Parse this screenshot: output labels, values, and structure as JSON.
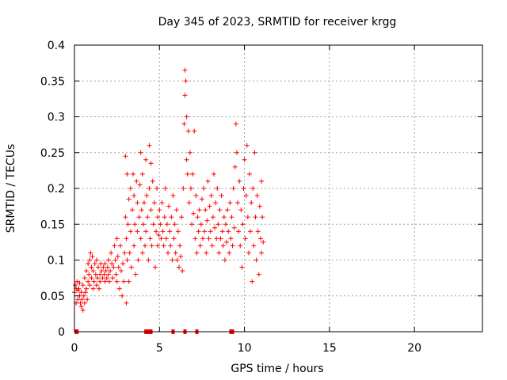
{
  "chart_data": {
    "type": "scatter",
    "title": "Day 345 of 2023, SRMTID for receiver krgg",
    "xlabel": "GPS time / hours",
    "ylabel": "SRMTID / TECUs",
    "xlim": [
      0,
      24
    ],
    "ylim": [
      0,
      0.4
    ],
    "x_ticks": [
      0,
      5,
      10,
      15,
      20
    ],
    "x_tick_labels": [
      "0",
      "5",
      "10",
      "15",
      "20"
    ],
    "y_ticks": [
      0,
      0.05,
      0.1,
      0.15,
      0.2,
      0.25,
      0.3,
      0.35,
      0.4
    ],
    "y_tick_labels": [
      "0",
      "0.05",
      "0.1",
      "0.15",
      "0.2",
      "0.25",
      "0.3",
      "0.35",
      "0.4"
    ],
    "grid": true,
    "marker": "plus",
    "color": "#ff0000",
    "zero_value_times": [
      0.1,
      0.15,
      4.2,
      4.35,
      4.5,
      5.8,
      6.5,
      7.2,
      9.2,
      9.3
    ],
    "series": [
      {
        "name": "SRMTID",
        "points": [
          [
            0.0,
            0.055
          ],
          [
            0.05,
            0.065
          ],
          [
            0.1,
            0.04
          ],
          [
            0.1,
            0.06
          ],
          [
            0.15,
            0.07
          ],
          [
            0.2,
            0.045
          ],
          [
            0.2,
            0.058
          ],
          [
            0.25,
            0.06
          ],
          [
            0.3,
            0.05
          ],
          [
            0.3,
            0.068
          ],
          [
            0.35,
            0.04
          ],
          [
            0.4,
            0.035
          ],
          [
            0.4,
            0.055
          ],
          [
            0.45,
            0.045
          ],
          [
            0.5,
            0.03
          ],
          [
            0.5,
            0.065
          ],
          [
            0.55,
            0.05
          ],
          [
            0.6,
            0.04
          ],
          [
            0.6,
            0.075
          ],
          [
            0.65,
            0.055
          ],
          [
            0.7,
            0.085
          ],
          [
            0.7,
            0.06
          ],
          [
            0.75,
            0.045
          ],
          [
            0.8,
            0.07
          ],
          [
            0.8,
            0.095
          ],
          [
            0.85,
            0.08
          ],
          [
            0.9,
            0.1
          ],
          [
            0.9,
            0.065
          ],
          [
            0.95,
            0.11
          ],
          [
            1.0,
            0.09
          ],
          [
            1.0,
            0.075
          ],
          [
            1.05,
            0.105
          ],
          [
            1.1,
            0.085
          ],
          [
            1.1,
            0.06
          ],
          [
            1.15,
            0.07
          ],
          [
            1.2,
            0.095
          ],
          [
            1.25,
            0.08
          ],
          [
            1.3,
            0.065
          ],
          [
            1.3,
            0.1
          ],
          [
            1.35,
            0.075
          ],
          [
            1.4,
            0.09
          ],
          [
            1.45,
            0.06
          ],
          [
            1.5,
            0.08
          ],
          [
            1.5,
            0.07
          ],
          [
            1.55,
            0.095
          ],
          [
            1.6,
            0.085
          ],
          [
            1.65,
            0.075
          ],
          [
            1.7,
            0.09
          ],
          [
            1.75,
            0.08
          ],
          [
            1.8,
            0.07
          ],
          [
            1.8,
            0.095
          ],
          [
            1.85,
            0.085
          ],
          [
            1.9,
            0.075
          ],
          [
            1.95,
            0.09
          ],
          [
            2.0,
            0.08
          ],
          [
            2.0,
            0.1
          ],
          [
            2.05,
            0.07
          ],
          [
            2.1,
            0.085
          ],
          [
            2.15,
            0.11
          ],
          [
            2.2,
            0.095
          ],
          [
            2.25,
            0.075
          ],
          [
            2.3,
            0.09
          ],
          [
            2.35,
            0.12
          ],
          [
            2.4,
            0.1
          ],
          [
            2.45,
            0.08
          ],
          [
            2.5,
            0.13
          ],
          [
            2.5,
            0.07
          ],
          [
            2.55,
            0.105
          ],
          [
            2.6,
            0.09
          ],
          [
            2.65,
            0.06
          ],
          [
            2.7,
            0.12
          ],
          [
            2.75,
            0.085
          ],
          [
            2.8,
            0.05
          ],
          [
            2.85,
            0.095
          ],
          [
            2.9,
            0.07
          ],
          [
            2.95,
            0.11
          ],
          [
            3.0,
            0.245
          ],
          [
            3.0,
            0.16
          ],
          [
            3.05,
            0.13
          ],
          [
            3.05,
            0.04
          ],
          [
            3.1,
            0.22
          ],
          [
            3.1,
            0.1
          ],
          [
            3.15,
            0.15
          ],
          [
            3.2,
            0.185
          ],
          [
            3.2,
            0.07
          ],
          [
            3.25,
            0.11
          ],
          [
            3.3,
            0.2
          ],
          [
            3.3,
            0.14
          ],
          [
            3.35,
            0.09
          ],
          [
            3.4,
            0.17
          ],
          [
            3.45,
            0.22
          ],
          [
            3.5,
            0.12
          ],
          [
            3.5,
            0.19
          ],
          [
            3.55,
            0.15
          ],
          [
            3.6,
            0.08
          ],
          [
            3.65,
            0.21
          ],
          [
            3.7,
            0.14
          ],
          [
            3.7,
            0.18
          ],
          [
            3.75,
            0.1
          ],
          [
            3.8,
            0.16
          ],
          [
            3.85,
            0.205
          ],
          [
            3.9,
            0.13
          ],
          [
            3.9,
            0.25
          ],
          [
            3.95,
            0.17
          ],
          [
            4.0,
            0.11
          ],
          [
            4.0,
            0.22
          ],
          [
            4.05,
            0.15
          ],
          [
            4.1,
            0.18
          ],
          [
            4.15,
            0.12
          ],
          [
            4.2,
            0.24
          ],
          [
            4.2,
            0.14
          ],
          [
            4.25,
            0.19
          ],
          [
            4.3,
            0.16
          ],
          [
            4.35,
            0.1
          ],
          [
            4.4,
            0.26
          ],
          [
            4.4,
            0.2
          ],
          [
            4.45,
            0.13
          ],
          [
            4.5,
            0.235
          ],
          [
            4.5,
            0.17
          ],
          [
            4.55,
            0.12
          ],
          [
            4.6,
            0.21
          ],
          [
            4.65,
            0.15
          ],
          [
            4.7,
            0.18
          ],
          [
            4.75,
            0.09
          ],
          [
            4.8,
            0.14
          ],
          [
            4.85,
            0.2
          ],
          [
            4.9,
            0.12
          ],
          [
            4.9,
            0.16
          ],
          [
            4.95,
            0.135
          ],
          [
            5.0,
            0.17
          ],
          [
            5.05,
            0.15
          ],
          [
            5.1,
            0.13
          ],
          [
            5.15,
            0.18
          ],
          [
            5.2,
            0.14
          ],
          [
            5.25,
            0.12
          ],
          [
            5.3,
            0.16
          ],
          [
            5.35,
            0.2
          ],
          [
            5.4,
            0.13
          ],
          [
            5.45,
            0.15
          ],
          [
            5.5,
            0.11
          ],
          [
            5.55,
            0.175
          ],
          [
            5.6,
            0.14
          ],
          [
            5.65,
            0.12
          ],
          [
            5.7,
            0.16
          ],
          [
            5.75,
            0.1
          ],
          [
            5.8,
            0.19
          ],
          [
            5.85,
            0.13
          ],
          [
            5.9,
            0.15
          ],
          [
            5.95,
            0.11
          ],
          [
            6.0,
            0.17
          ],
          [
            6.05,
            0.1
          ],
          [
            6.1,
            0.14
          ],
          [
            6.15,
            0.09
          ],
          [
            6.2,
            0.12
          ],
          [
            6.25,
            0.105
          ],
          [
            6.3,
            0.16
          ],
          [
            6.35,
            0.085
          ],
          [
            6.4,
            0.2
          ],
          [
            6.45,
            0.29
          ],
          [
            6.5,
            0.365
          ],
          [
            6.5,
            0.33
          ],
          [
            6.55,
            0.35
          ],
          [
            6.6,
            0.24
          ],
          [
            6.6,
            0.3
          ],
          [
            6.65,
            0.22
          ],
          [
            6.7,
            0.28
          ],
          [
            6.75,
            0.18
          ],
          [
            6.8,
            0.25
          ],
          [
            6.85,
            0.2
          ],
          [
            6.9,
            0.15
          ],
          [
            6.95,
            0.22
          ],
          [
            7.0,
            0.165
          ],
          [
            7.05,
            0.28
          ],
          [
            7.1,
            0.13
          ],
          [
            7.15,
            0.19
          ],
          [
            7.2,
            0.11
          ],
          [
            7.25,
            0.16
          ],
          [
            7.3,
            0.14
          ],
          [
            7.35,
            0.17
          ],
          [
            7.4,
            0.12
          ],
          [
            7.45,
            0.15
          ],
          [
            7.5,
            0.185
          ],
          [
            7.55,
            0.13
          ],
          [
            7.6,
            0.2
          ],
          [
            7.65,
            0.14
          ],
          [
            7.7,
            0.17
          ],
          [
            7.75,
            0.11
          ],
          [
            7.8,
            0.155
          ],
          [
            7.85,
            0.21
          ],
          [
            7.9,
            0.13
          ],
          [
            7.95,
            0.175
          ],
          [
            8.0,
            0.14
          ],
          [
            8.05,
            0.19
          ],
          [
            8.1,
            0.12
          ],
          [
            8.15,
            0.16
          ],
          [
            8.2,
            0.22
          ],
          [
            8.25,
            0.145
          ],
          [
            8.3,
            0.18
          ],
          [
            8.35,
            0.13
          ],
          [
            8.4,
            0.2
          ],
          [
            8.45,
            0.15
          ],
          [
            8.5,
            0.11
          ],
          [
            8.55,
            0.17
          ],
          [
            8.6,
            0.13
          ],
          [
            8.65,
            0.19
          ],
          [
            8.7,
            0.14
          ],
          [
            8.75,
            0.12
          ],
          [
            8.8,
            0.16
          ],
          [
            8.85,
            0.1
          ],
          [
            8.9,
            0.15
          ],
          [
            8.95,
            0.125
          ],
          [
            9.0,
            0.17
          ],
          [
            9.05,
            0.14
          ],
          [
            9.1,
            0.11
          ],
          [
            9.15,
            0.18
          ],
          [
            9.2,
            0.13
          ],
          [
            9.25,
            0.16
          ],
          [
            9.3,
            0.12
          ],
          [
            9.35,
            0.2
          ],
          [
            9.4,
            0.145
          ],
          [
            9.45,
            0.23
          ],
          [
            9.5,
            0.29
          ],
          [
            9.55,
            0.25
          ],
          [
            9.6,
            0.18
          ],
          [
            9.65,
            0.14
          ],
          [
            9.7,
            0.21
          ],
          [
            9.75,
            0.12
          ],
          [
            9.8,
            0.17
          ],
          [
            9.85,
            0.09
          ],
          [
            9.9,
            0.15
          ],
          [
            9.95,
            0.2
          ],
          [
            10.0,
            0.24
          ],
          [
            10.05,
            0.13
          ],
          [
            10.1,
            0.19
          ],
          [
            10.15,
            0.26
          ],
          [
            10.2,
            0.16
          ],
          [
            10.25,
            0.11
          ],
          [
            10.3,
            0.22
          ],
          [
            10.35,
            0.14
          ],
          [
            10.4,
            0.18
          ],
          [
            10.45,
            0.07
          ],
          [
            10.5,
            0.2
          ],
          [
            10.55,
            0.12
          ],
          [
            10.6,
            0.25
          ],
          [
            10.65,
            0.16
          ],
          [
            10.7,
            0.1
          ],
          [
            10.75,
            0.19
          ],
          [
            10.8,
            0.14
          ],
          [
            10.85,
            0.08
          ],
          [
            10.9,
            0.175
          ],
          [
            10.95,
            0.13
          ],
          [
            11.0,
            0.21
          ],
          [
            11.0,
            0.11
          ],
          [
            11.05,
            0.16
          ],
          [
            11.1,
            0.125
          ]
        ]
      }
    ]
  }
}
